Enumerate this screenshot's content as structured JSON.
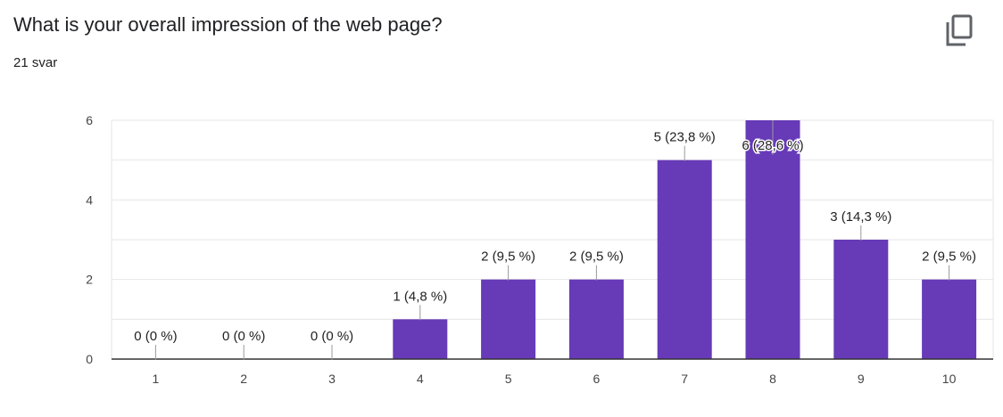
{
  "header": {
    "question": "What is your overall impression of the web page?",
    "response_count": "21 svar",
    "copy_icon": "copy-icon"
  },
  "colors": {
    "bar": "#673ab7",
    "grid": "#e6e6e6",
    "axis": "#333333"
  },
  "chart_data": {
    "type": "bar",
    "categories": [
      "1",
      "2",
      "3",
      "4",
      "5",
      "6",
      "7",
      "8",
      "9",
      "10"
    ],
    "values": [
      0,
      0,
      0,
      1,
      2,
      2,
      5,
      6,
      3,
      2
    ],
    "data_labels": [
      "0 (0 %)",
      "0 (0 %)",
      "0 (0 %)",
      "1 (4,8 %)",
      "2 (9,5 %)",
      "2 (9,5 %)",
      "5 (23,8 %)",
      "6 (28,6 %)",
      "3 (14,3 %)",
      "2 (9,5 %)"
    ],
    "title": "What is your overall impression of the web page?",
    "xlabel": "",
    "ylabel": "",
    "ylim": [
      0,
      6
    ],
    "yticks": [
      0,
      2,
      4,
      6
    ],
    "grid": true,
    "legend": "none"
  }
}
